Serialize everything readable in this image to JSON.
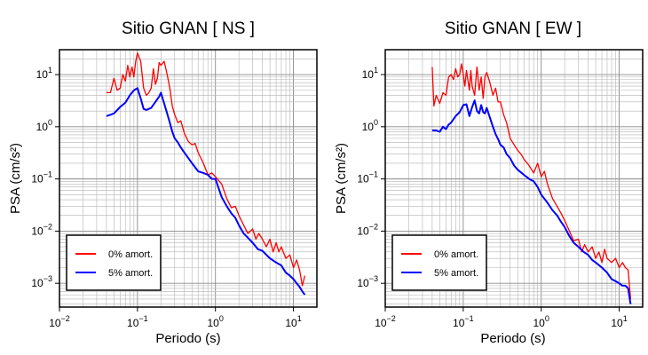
{
  "chart_data": [
    {
      "type": "line",
      "title": "Sitio GNAN [ NS ]",
      "xlabel": "Periodo (s)",
      "ylabel": "PSA (cm/s²)",
      "xscale": "log",
      "yscale": "log",
      "xlim": [
        0.01,
        20
      ],
      "ylim": [
        0.00035,
        30
      ],
      "grid": true,
      "legend_position": "bottom-left",
      "series": [
        {
          "name": "0% amort.",
          "color": "#ff0000",
          "x": [
            0.04,
            0.045,
            0.05,
            0.055,
            0.06,
            0.065,
            0.07,
            0.075,
            0.08,
            0.085,
            0.09,
            0.095,
            0.1,
            0.11,
            0.12,
            0.13,
            0.14,
            0.15,
            0.16,
            0.17,
            0.18,
            0.19,
            0.2,
            0.22,
            0.24,
            0.26,
            0.28,
            0.3,
            0.33,
            0.36,
            0.4,
            0.45,
            0.5,
            0.55,
            0.6,
            0.7,
            0.8,
            0.9,
            1.0,
            1.2,
            1.4,
            1.6,
            1.8,
            2.0,
            2.3,
            2.6,
            3.0,
            3.3,
            3.6,
            4.0,
            4.5,
            5.0,
            5.5,
            6.0,
            6.5,
            7.0,
            8.0,
            9.0,
            10.0,
            11.0,
            12.0,
            13.0,
            14.0
          ],
          "y": [
            4.5,
            4.5,
            8.5,
            5.0,
            5.5,
            10.0,
            7.5,
            15.0,
            9.0,
            14.0,
            9.0,
            18.0,
            26.0,
            18.0,
            5.5,
            4.0,
            4.5,
            5.5,
            13.0,
            6.5,
            8.5,
            17.0,
            15.0,
            18.0,
            10.0,
            5.5,
            2.5,
            1.7,
            1.2,
            1.3,
            0.75,
            0.52,
            0.45,
            0.48,
            0.32,
            0.2,
            0.12,
            0.13,
            0.11,
            0.08,
            0.042,
            0.028,
            0.03,
            0.02,
            0.013,
            0.009,
            0.011,
            0.007,
            0.009,
            0.007,
            0.005,
            0.007,
            0.004,
            0.006,
            0.004,
            0.005,
            0.003,
            0.0035,
            0.002,
            0.0028,
            0.0018,
            0.0009,
            0.0014
          ]
        },
        {
          "name": "5% amort.",
          "color": "#0000ff",
          "x": [
            0.04,
            0.045,
            0.05,
            0.06,
            0.07,
            0.08,
            0.09,
            0.1,
            0.11,
            0.12,
            0.13,
            0.14,
            0.15,
            0.17,
            0.19,
            0.2,
            0.22,
            0.24,
            0.26,
            0.28,
            0.3,
            0.33,
            0.36,
            0.4,
            0.45,
            0.5,
            0.6,
            0.7,
            0.8,
            0.9,
            1.0,
            1.2,
            1.4,
            1.6,
            1.8,
            2.0,
            2.3,
            2.6,
            3.0,
            3.5,
            4.0,
            4.5,
            5.0,
            6.0,
            7.0,
            8.0,
            9.0,
            10.0,
            11.0,
            12.0,
            13.0,
            14.0
          ],
          "y": [
            1.6,
            1.7,
            1.8,
            2.4,
            2.9,
            4.0,
            5.0,
            5.5,
            3.5,
            2.2,
            2.1,
            2.2,
            2.3,
            3.0,
            3.8,
            4.5,
            2.8,
            1.8,
            1.2,
            0.8,
            0.6,
            0.5,
            0.4,
            0.32,
            0.25,
            0.2,
            0.14,
            0.13,
            0.12,
            0.1,
            0.1,
            0.045,
            0.03,
            0.022,
            0.018,
            0.013,
            0.009,
            0.0075,
            0.006,
            0.0045,
            0.0042,
            0.0035,
            0.003,
            0.0025,
            0.0022,
            0.0016,
            0.0014,
            0.0012,
            0.001,
            0.00085,
            0.0007,
            0.0006
          ]
        }
      ]
    },
    {
      "type": "line",
      "title": "Sitio GNAN [ EW ]",
      "xlabel": "Periodo (s)",
      "ylabel": "PSA (cm/s²)",
      "xscale": "log",
      "yscale": "log",
      "xlim": [
        0.01,
        20
      ],
      "ylim": [
        0.00035,
        30
      ],
      "grid": true,
      "legend_position": "bottom-left",
      "series": [
        {
          "name": "0% amort.",
          "color": "#ff0000",
          "x": [
            0.04,
            0.042,
            0.045,
            0.05,
            0.055,
            0.06,
            0.065,
            0.07,
            0.075,
            0.08,
            0.085,
            0.09,
            0.095,
            0.1,
            0.105,
            0.11,
            0.12,
            0.125,
            0.13,
            0.14,
            0.15,
            0.16,
            0.17,
            0.18,
            0.19,
            0.2,
            0.22,
            0.24,
            0.26,
            0.28,
            0.3,
            0.33,
            0.36,
            0.4,
            0.45,
            0.5,
            0.55,
            0.6,
            0.7,
            0.8,
            0.9,
            1.0,
            1.1,
            1.2,
            1.4,
            1.6,
            1.8,
            2.0,
            2.3,
            2.6,
            3.0,
            3.3,
            3.6,
            4.0,
            4.5,
            5.0,
            5.5,
            6.0,
            6.5,
            7.0,
            8.0,
            9.0,
            10.0,
            11.0,
            12.0,
            13.0,
            14.0
          ],
          "y": [
            14.0,
            2.5,
            4.0,
            2.8,
            4.5,
            4.0,
            9.0,
            10.0,
            8.0,
            13.0,
            9.0,
            10.0,
            16.0,
            10.0,
            6.0,
            12.0,
            5.0,
            12.0,
            6.0,
            4.0,
            14.0,
            5.0,
            9.0,
            3.5,
            9.0,
            11.0,
            7.0,
            4.0,
            5.5,
            3.0,
            3.0,
            1.7,
            1.2,
            0.6,
            0.45,
            0.35,
            0.3,
            0.24,
            0.18,
            0.13,
            0.2,
            0.11,
            0.14,
            0.08,
            0.042,
            0.03,
            0.022,
            0.016,
            0.01,
            0.0065,
            0.007,
            0.004,
            0.0055,
            0.004,
            0.005,
            0.003,
            0.004,
            0.0025,
            0.0045,
            0.003,
            0.0025,
            0.003,
            0.002,
            0.0025,
            0.002,
            0.0018,
            0.0005
          ]
        },
        {
          "name": "5% amort.",
          "color": "#0000ff",
          "x": [
            0.04,
            0.045,
            0.05,
            0.055,
            0.06,
            0.065,
            0.07,
            0.08,
            0.09,
            0.1,
            0.11,
            0.12,
            0.13,
            0.14,
            0.15,
            0.16,
            0.17,
            0.18,
            0.19,
            0.2,
            0.22,
            0.24,
            0.26,
            0.28,
            0.3,
            0.33,
            0.36,
            0.4,
            0.45,
            0.5,
            0.6,
            0.7,
            0.8,
            0.9,
            1.0,
            1.2,
            1.4,
            1.6,
            1.8,
            2.0,
            2.3,
            2.6,
            3.0,
            3.5,
            4.0,
            4.5,
            5.0,
            6.0,
            7.0,
            8.0,
            9.0,
            10.0,
            11.0,
            12.0,
            13.0,
            14.0
          ],
          "y": [
            0.85,
            0.85,
            0.8,
            1.0,
            0.9,
            1.1,
            1.2,
            1.6,
            1.9,
            2.6,
            2.7,
            1.6,
            2.4,
            3.2,
            2.0,
            1.8,
            2.6,
            1.9,
            1.8,
            2.3,
            1.5,
            1.0,
            0.72,
            0.58,
            0.45,
            0.4,
            0.3,
            0.25,
            0.18,
            0.15,
            0.12,
            0.1,
            0.09,
            0.07,
            0.05,
            0.035,
            0.025,
            0.02,
            0.015,
            0.012,
            0.008,
            0.006,
            0.005,
            0.004,
            0.0035,
            0.0028,
            0.0025,
            0.002,
            0.0016,
            0.0012,
            0.0011,
            0.001,
            0.0009,
            0.0009,
            0.0008,
            0.0004
          ]
        }
      ]
    }
  ]
}
